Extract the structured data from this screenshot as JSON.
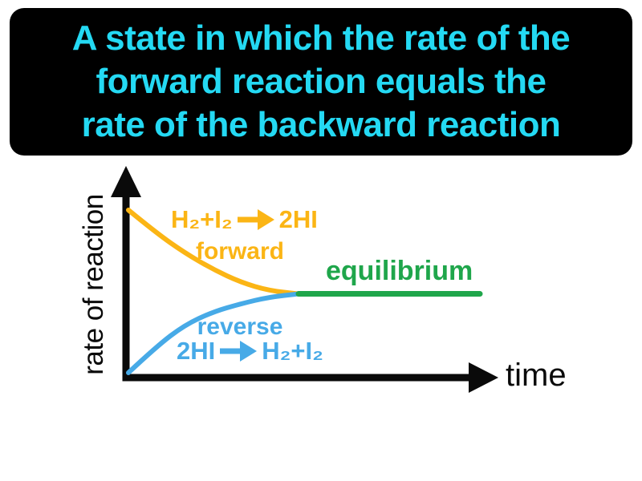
{
  "definition_card": {
    "full_text": "A state in which the rate of the forward reaction equals the rate of the backward reaction",
    "lines": [
      "A state in which the rate of the",
      "forward reaction equals the",
      "rate of the backward reaction"
    ],
    "text_color": "#24d9f3",
    "bg_color": "#000000"
  },
  "diagram": {
    "y_axis_label": "rate of reaction",
    "x_axis_label": "time",
    "axis_color": "#0a0a0a",
    "forward": {
      "formula_reactants": "H₂+I₂",
      "formula_product": "2HI",
      "label": "forward",
      "color": "#fbb515"
    },
    "reverse": {
      "label": "reverse",
      "formula_reactant": "2HI",
      "formula_products": "H₂+I₂",
      "color": "#47aae7"
    },
    "equilibrium": {
      "label": "equilibrium",
      "color": "#1fa64b"
    }
  },
  "chart_data": {
    "type": "line",
    "title": "Rates of forward and reverse reactions reaching equilibrium",
    "xlabel": "time",
    "ylabel": "rate of reaction",
    "grid": false,
    "legend_position": "inline-labels",
    "axes_numeric": false,
    "x_range_normalized": [
      0,
      1
    ],
    "y_range_normalized": [
      0,
      1
    ],
    "series": [
      {
        "name": "forward: H₂+I₂ → 2HI",
        "data_name": "forward-curve",
        "color": "#fbb515",
        "width": 6,
        "x": [
          0,
          0.08,
          0.16,
          0.24,
          0.32,
          0.4,
          0.484
        ],
        "y": [
          1.0,
          0.86,
          0.74,
          0.64,
          0.56,
          0.51,
          0.49
        ]
      },
      {
        "name": "reverse: 2HI → H₂+I₂",
        "data_name": "reverse-curve",
        "color": "#47aae7",
        "width": 6,
        "x": [
          0,
          0.08,
          0.16,
          0.24,
          0.32,
          0.4,
          0.484
        ],
        "y": [
          0.01,
          0.17,
          0.3,
          0.38,
          0.43,
          0.47,
          0.49
        ]
      },
      {
        "name": "equilibrium",
        "data_name": "equilibrium-line",
        "color": "#1fa64b",
        "width": 7,
        "x": [
          0.484,
          1.0
        ],
        "y": [
          0.49,
          0.49
        ]
      }
    ],
    "annotations": [
      "H₂+I₂ → 2HI",
      "forward",
      "equilibrium",
      "reverse",
      "2HI → H₂+I₂"
    ]
  }
}
